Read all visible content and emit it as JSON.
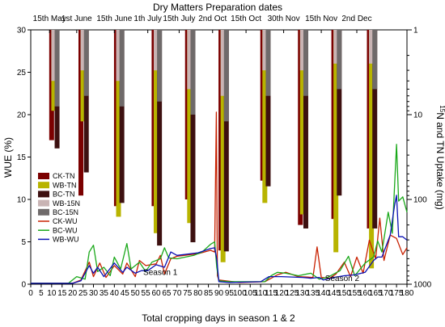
{
  "chart_data": {
    "type": "bar+line",
    "title": "Dry Matters Preparation dates",
    "xlabel": "Total cropping days in season 1 & 2",
    "ylabel_left": "WUE (%)",
    "ylabel_right_sup": "15",
    "ylabel_right": "N and TN Uptake (mg)",
    "xlim": [
      0,
      180
    ],
    "xticks": [
      0,
      5,
      10,
      15,
      20,
      25,
      30,
      35,
      40,
      45,
      50,
      55,
      60,
      65,
      70,
      75,
      80,
      85,
      90,
      95,
      100,
      105,
      110,
      115,
      120,
      125,
      130,
      135,
      140,
      145,
      150,
      155,
      160,
      165,
      170,
      175,
      180
    ],
    "ylim_left": [
      0,
      30
    ],
    "yticks_left": [
      0,
      5,
      10,
      15,
      20,
      25,
      30
    ],
    "right_axis_scale": "log-reversed",
    "ylim_right": [
      1,
      1000
    ],
    "yticks_right": [
      1,
      10,
      100,
      1000
    ],
    "date_labels": [
      {
        "label": "15th May",
        "day": 9
      },
      {
        "label": "1st June",
        "day": 22
      },
      {
        "label": "15th June",
        "day": 40
      },
      {
        "label": "1th July",
        "day": 56
      },
      {
        "label": "15th July",
        "day": 71
      },
      {
        "label": "2nd Oct",
        "day": 87
      },
      {
        "label": "15th Oct",
        "day": 103
      },
      {
        "label": "30th Nov",
        "day": 121
      },
      {
        "label": "15th Nov",
        "day": 139
      },
      {
        "label": "2nd Dec",
        "day": 156
      }
    ],
    "date_markers": [
      9,
      22,
      40,
      56,
      71,
      87,
      103,
      121,
      139,
      156
    ],
    "bar_groups": [
      {
        "day": 10,
        "CK-TN": 20,
        "WB-TN": 9,
        "BC-TN": 25,
        "WB-15N": 4,
        "BC-15N": 8
      },
      {
        "day": 24,
        "CK-TN": 90,
        "WB-TN": 12,
        "BC-TN": 48,
        "WB-15N": 3,
        "BC-15N": 6
      },
      {
        "day": 41,
        "CK-TN": 120,
        "WB-TN": 160,
        "BC-TN": 110,
        "WB-15N": 4,
        "BC-15N": 8
      },
      {
        "day": 59,
        "CK-TN": 120,
        "WB-TN": 250,
        "BC-TN": 350,
        "WB-15N": 3,
        "BC-15N": 7
      },
      {
        "day": 75,
        "CK-TN": 100,
        "WB-TN": 190,
        "BC-TN": 320,
        "WB-15N": 5,
        "BC-15N": 10
      },
      {
        "day": 91,
        "CK-TN": 400,
        "WB-TN": 550,
        "BC-TN": 410,
        "WB-15N": 6,
        "BC-15N": 12
      },
      {
        "day": 111,
        "CK-TN": 60,
        "WB-TN": 110,
        "BC-TN": 70,
        "WB-15N": 3,
        "BC-15N": 6
      },
      {
        "day": 129,
        "CK-TN": 200,
        "WB-TN": 150,
        "BC-TN": 220,
        "WB-15N": 3,
        "BC-15N": 6
      },
      {
        "day": 145,
        "CK-TN": 170,
        "WB-TN": 420,
        "BC-TN": 90,
        "WB-15N": 2.5,
        "BC-15N": 5
      },
      {
        "day": 162,
        "CK-TN": 220,
        "WB-TN": 650,
        "BC-TN": 220,
        "WB-15N": 2.5,
        "BC-15N": 5
      }
    ],
    "legend": [
      "CK-TN",
      "WB-TN",
      "BC-TN",
      "WB-15N",
      "BC-15N",
      "CK-WU",
      "BC-WU",
      "WB-WU"
    ],
    "colors": {
      "CK-TN": "#7b0000",
      "WB-TN": "#b8b400",
      "BC-TN": "#3d1010",
      "WB-15N": "#c9b4b4",
      "BC-15N": "#6f6a6a",
      "CK-WU": "#c82000",
      "BC-WU": "#1aa81a",
      "WB-WU": "#0a10b4"
    },
    "line_series": [
      {
        "name": "CK-WU",
        "points": [
          [
            0,
            0.1
          ],
          [
            20,
            0.1
          ],
          [
            24,
            0.5
          ],
          [
            28,
            2.6
          ],
          [
            30,
            0.9
          ],
          [
            33,
            2.5
          ],
          [
            36,
            0.8
          ],
          [
            40,
            2.2
          ],
          [
            44,
            1.2
          ],
          [
            46,
            2.5
          ],
          [
            50,
            0.9
          ],
          [
            52,
            2.8
          ],
          [
            55,
            2.2
          ],
          [
            60,
            2.4
          ],
          [
            62,
            3.4
          ],
          [
            64,
            1.2
          ],
          [
            67,
            3.0
          ],
          [
            70,
            3.3
          ],
          [
            80,
            3.6
          ],
          [
            86,
            4.0
          ],
          [
            88,
            3.8
          ],
          [
            88.8,
            20.3
          ],
          [
            89.3,
            1.0
          ],
          [
            90,
            0.5
          ],
          [
            100,
            0.2
          ],
          [
            112,
            0.3
          ],
          [
            118,
            1.1
          ],
          [
            122,
            1.4
          ],
          [
            128,
            0.9
          ],
          [
            135,
            0.8
          ],
          [
            137,
            4.4
          ],
          [
            139,
            0.8
          ],
          [
            143,
            0.7
          ],
          [
            146,
            1.2
          ],
          [
            150,
            2.6
          ],
          [
            153,
            0.9
          ],
          [
            156,
            3.2
          ],
          [
            159,
            1.3
          ],
          [
            162,
            5.2
          ],
          [
            165,
            3.0
          ],
          [
            167,
            7.8
          ],
          [
            169,
            2.8
          ],
          [
            172,
            5.8
          ],
          [
            175,
            5.4
          ],
          [
            178,
            3.5
          ],
          [
            180,
            4.3
          ]
        ]
      },
      {
        "name": "BC-WU",
        "points": [
          [
            0,
            0.1
          ],
          [
            18,
            0.1
          ],
          [
            22,
            0.9
          ],
          [
            26,
            0.6
          ],
          [
            28,
            3.8
          ],
          [
            30,
            4.6
          ],
          [
            32,
            1.5
          ],
          [
            35,
            2.0
          ],
          [
            38,
            1.0
          ],
          [
            40,
            3.2
          ],
          [
            43,
            1.8
          ],
          [
            46,
            4.8
          ],
          [
            48,
            1.8
          ],
          [
            52,
            2.6
          ],
          [
            55,
            1.5
          ],
          [
            58,
            2.6
          ],
          [
            62,
            3.0
          ],
          [
            64,
            4.3
          ],
          [
            66,
            3.1
          ],
          [
            70,
            3.0
          ],
          [
            78,
            3.4
          ],
          [
            82,
            3.8
          ],
          [
            86,
            4.7
          ],
          [
            88,
            5.0
          ],
          [
            89,
            2.0
          ],
          [
            90,
            0.4
          ],
          [
            95,
            0.3
          ],
          [
            110,
            0.3
          ],
          [
            112,
            0.3
          ],
          [
            115,
            1.0
          ],
          [
            118,
            1.4
          ],
          [
            122,
            1.3
          ],
          [
            128,
            1.0
          ],
          [
            134,
            1.3
          ],
          [
            138,
            0.6
          ],
          [
            142,
            0.8
          ],
          [
            148,
            1.6
          ],
          [
            152,
            3.3
          ],
          [
            155,
            1.0
          ],
          [
            160,
            2.5
          ],
          [
            164,
            3.2
          ],
          [
            166,
            5.1
          ],
          [
            168,
            3.8
          ],
          [
            171,
            8.5
          ],
          [
            173,
            6.0
          ],
          [
            175,
            16.5
          ],
          [
            176,
            9.8
          ],
          [
            178,
            10.3
          ],
          [
            180,
            8.5
          ]
        ]
      },
      {
        "name": "WB-WU",
        "points": [
          [
            0,
            0.1
          ],
          [
            20,
            0.1
          ],
          [
            24,
            0.4
          ],
          [
            28,
            2.2
          ],
          [
            30,
            1.3
          ],
          [
            32,
            2.0
          ],
          [
            35,
            0.9
          ],
          [
            40,
            2.5
          ],
          [
            44,
            1.4
          ],
          [
            46,
            2.0
          ],
          [
            50,
            1.3
          ],
          [
            53,
            1.6
          ],
          [
            56,
            1.6
          ],
          [
            60,
            2.3
          ],
          [
            64,
            2.0
          ],
          [
            67,
            3.8
          ],
          [
            70,
            3.4
          ],
          [
            80,
            3.7
          ],
          [
            86,
            4.2
          ],
          [
            88,
            4.3
          ],
          [
            89,
            3.0
          ],
          [
            90,
            0.3
          ],
          [
            95,
            0.2
          ],
          [
            110,
            0.3
          ],
          [
            114,
            0.9
          ],
          [
            120,
            0.9
          ],
          [
            130,
            0.8
          ],
          [
            134,
            0.7
          ],
          [
            138,
            0.8
          ],
          [
            140,
            0.5
          ],
          [
            145,
            0.8
          ],
          [
            150,
            1.0
          ],
          [
            155,
            1.1
          ],
          [
            160,
            1.4
          ],
          [
            164,
            2.8
          ],
          [
            166,
            3.2
          ],
          [
            168,
            3.2
          ],
          [
            172,
            5.8
          ],
          [
            174,
            9.2
          ],
          [
            175,
            10.5
          ],
          [
            176,
            5.6
          ],
          [
            178,
            5.6
          ],
          [
            180,
            5.2
          ]
        ]
      }
    ],
    "annotations": [
      {
        "text": "Season 1",
        "day": 62,
        "wue": 0.8
      },
      {
        "text": "Season 2",
        "day": 149,
        "wue": 0.1
      }
    ]
  }
}
